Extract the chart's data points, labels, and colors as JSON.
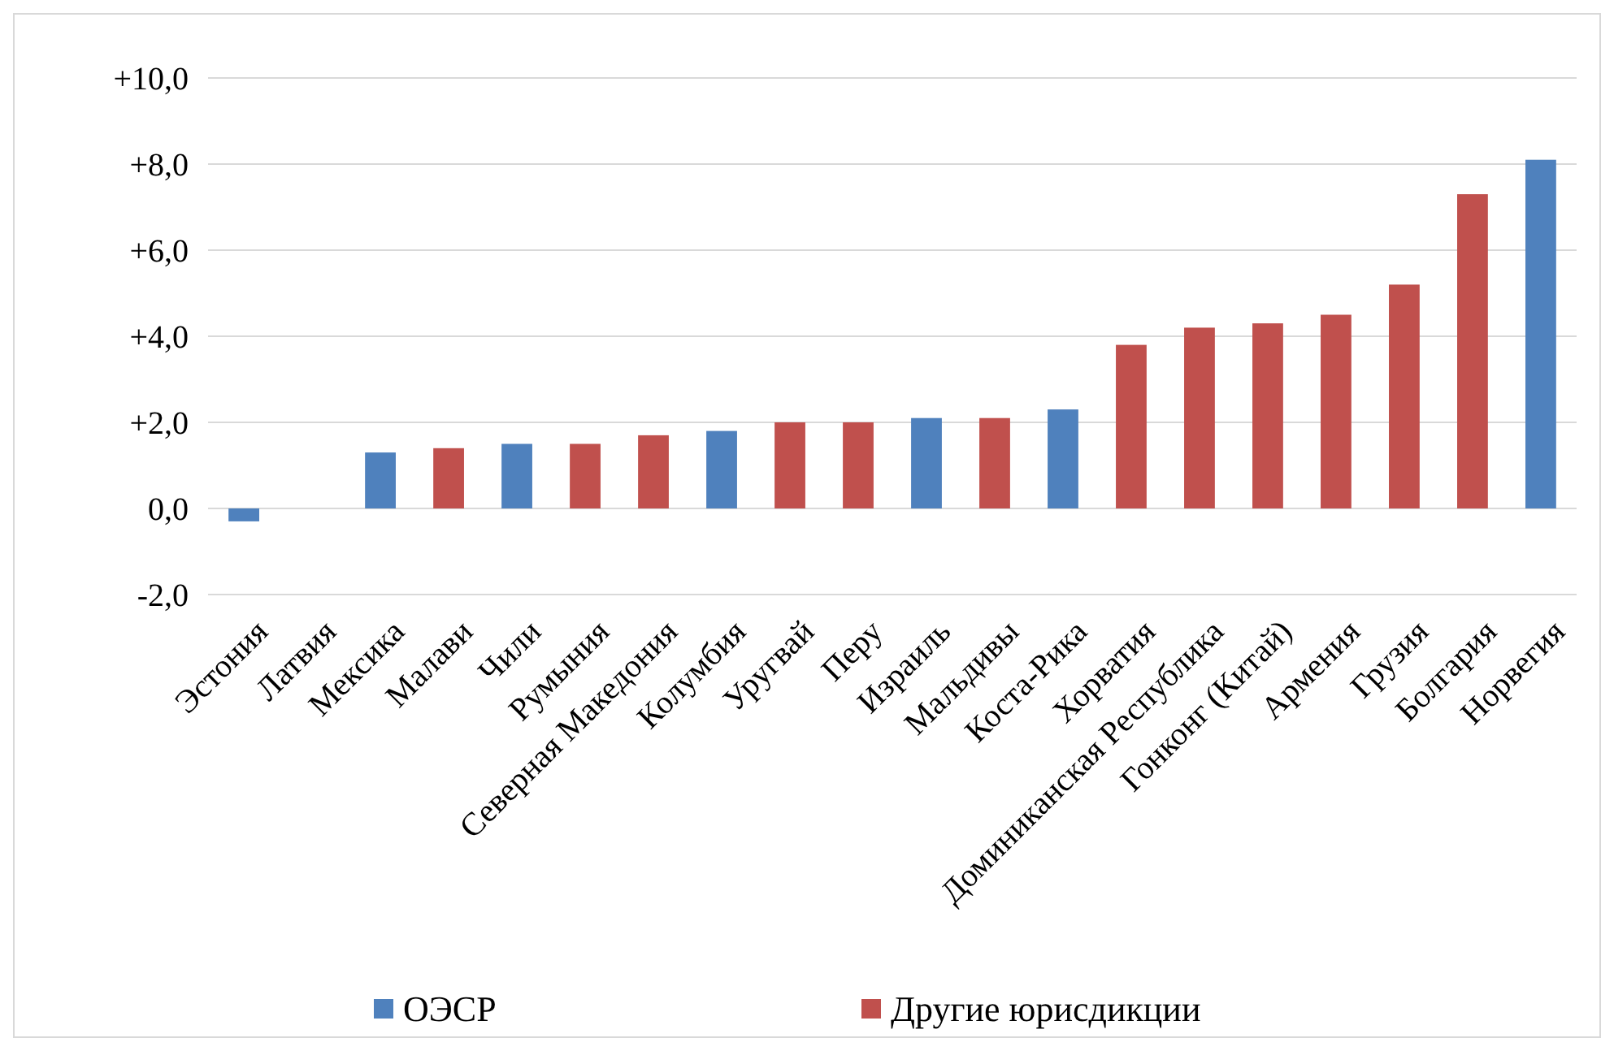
{
  "chart_data": {
    "type": "bar",
    "categories": [
      "Эстония",
      "Латвия",
      "Мексика",
      "Малави",
      "Чили",
      "Румыния",
      "Северная Македония",
      "Колумбия",
      "Уругвай",
      "Перу",
      "Израиль",
      "Мальдивы",
      "Коста-Рика",
      "Хорватия",
      "Доминиканская Республика",
      "Гонконг (Китай)",
      "Армения",
      "Грузия",
      "Болгария",
      "Норвегия"
    ],
    "series": [
      {
        "name": "ОЭСР",
        "color": "#4f81bd",
        "values": [
          -0.3,
          0,
          1.3,
          null,
          1.5,
          null,
          null,
          1.8,
          null,
          null,
          2.1,
          null,
          2.3,
          null,
          null,
          null,
          null,
          null,
          null,
          8.1
        ]
      },
      {
        "name": "Другие юрисдикции",
        "color": "#c0504d",
        "values": [
          null,
          null,
          null,
          1.4,
          null,
          1.5,
          1.7,
          null,
          2.0,
          2.0,
          null,
          2.1,
          null,
          3.8,
          4.2,
          4.3,
          4.5,
          5.2,
          7.3,
          null
        ]
      }
    ],
    "ylim": [
      -2,
      10
    ],
    "yticks": [
      {
        "value": -2,
        "label": "-2,0"
      },
      {
        "value": 0,
        "label": "0,0"
      },
      {
        "value": 2,
        "label": "+2,0"
      },
      {
        "value": 4,
        "label": "+4,0"
      },
      {
        "value": 6,
        "label": "+6,0"
      },
      {
        "value": 8,
        "label": "+8,0"
      },
      {
        "value": 10,
        "label": "+10,0"
      }
    ],
    "grid": "y",
    "legend": "bottom"
  }
}
